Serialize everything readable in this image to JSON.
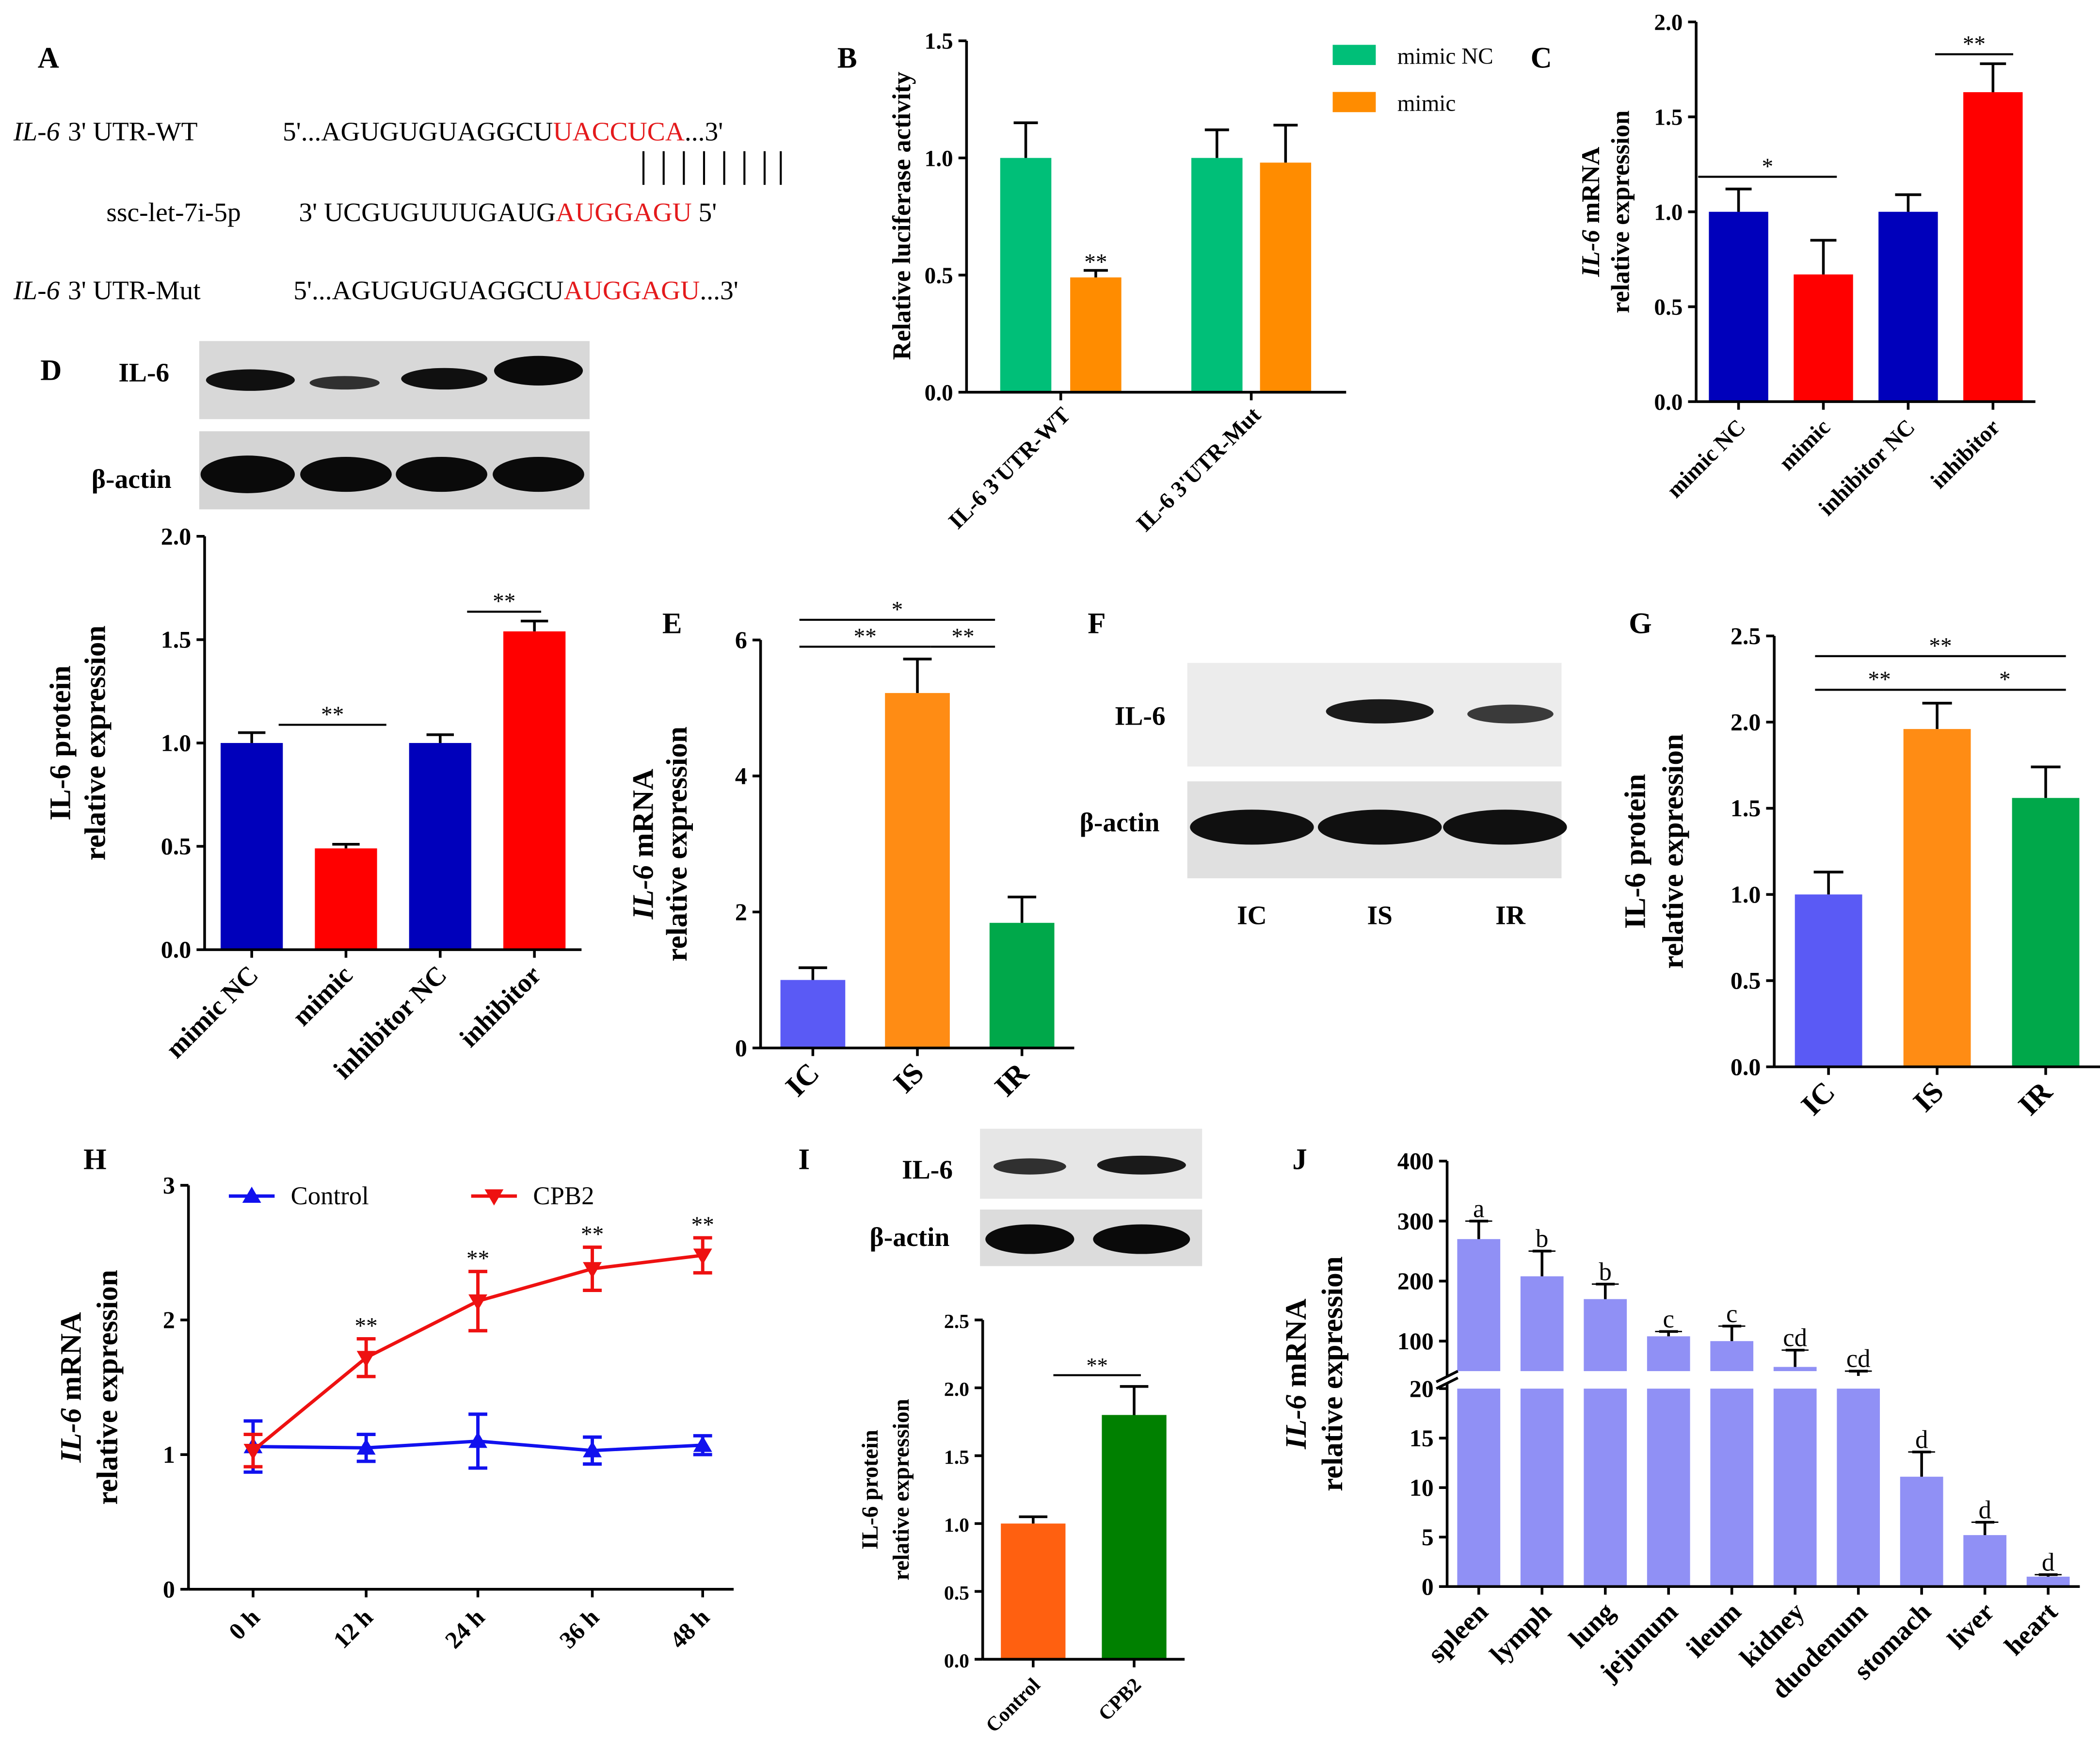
{
  "colors": {
    "blue": "#0000bb",
    "red": "#ff0000",
    "green_b": "#00bf78",
    "orange_b": "#ff8c00",
    "light_blue": "#5a5af5",
    "orange": "#ff8c14",
    "green": "#00a84a",
    "ctrl_orange": "#ff6010",
    "dark_green": "#008000",
    "lavender": "#9090f5",
    "seq_red": "#e41a1c",
    "line_blue": "#1111ee",
    "line_red": "#ee1111"
  },
  "panel_labels": {
    "A": "A",
    "B": "B",
    "C": "C",
    "D": "D",
    "E": "E",
    "F": "F",
    "G": "G",
    "H": "H",
    "I": "I",
    "J": "J"
  },
  "panel_a": {
    "wt": {
      "gene": "IL-6",
      "region": "3' UTR-WT",
      "prefix": "5'...AGUGUGUAGGCU",
      "highlight": "UACCUCA",
      "suffix": "...3'"
    },
    "mirna": {
      "name": "ssc-let-7i-5p",
      "prefix": "3' UCGUGUUUGAUG",
      "highlight": "AUGGAGU",
      "suffix": " 5'"
    },
    "mut": {
      "gene": "IL-6",
      "region": "3' UTR-Mut",
      "prefix": "5'...AGUGUGUAGGCU",
      "highlight": "AUGGAGU",
      "suffix": "...3'"
    }
  },
  "blots": {
    "d": {
      "top_label": "IL-6",
      "bottom_label": "β-actin"
    },
    "f": {
      "top_label": "IL-6",
      "bottom_label": "β-actin",
      "lanes": [
        "IC",
        "IS",
        "IR"
      ]
    },
    "i": {
      "top_label": "IL-6",
      "bottom_label": "β-actin"
    }
  },
  "chart_data": [
    {
      "panel": "B",
      "type": "bar",
      "categories": [
        "IL-6 3'UTR-WT",
        "IL-6 3'UTR-Mut"
      ],
      "series": [
        {
          "name": "mimic NC",
          "values": [
            1.0,
            1.0
          ],
          "errors": [
            0.15,
            0.12
          ],
          "color": "#00bf78"
        },
        {
          "name": "mimic",
          "values": [
            0.49,
            0.98
          ],
          "errors": [
            0.03,
            0.16
          ],
          "color": "#ff8c00"
        }
      ],
      "ylabel": "Relative luciferase activity",
      "ylim": [
        0,
        1.5
      ],
      "yticks": [
        "0.0",
        "0.5",
        "1.0",
        "1.5"
      ],
      "annotations": [
        "**"
      ],
      "legend": "top-right"
    },
    {
      "panel": "C",
      "type": "bar",
      "categories": [
        "mimic NC",
        "mimic",
        "inhibitor NC",
        "inhibitor"
      ],
      "values": [
        1.0,
        0.67,
        1.0,
        1.63
      ],
      "errors": [
        0.12,
        0.18,
        0.09,
        0.15
      ],
      "colors": [
        "#0000bb",
        "#ff0000",
        "#0000bb",
        "#ff0000"
      ],
      "ylabel_italic": "IL-6",
      "ylabel_rest": " mRNA",
      "ylabel_line2": "relative expression",
      "ylim": [
        0,
        2.0
      ],
      "yticks": [
        "0.0",
        "0.5",
        "1.0",
        "1.5",
        "2.0"
      ],
      "annotations": [
        "*",
        "**"
      ]
    },
    {
      "panel": "D",
      "type": "bar",
      "categories": [
        "mimic NC",
        "mimic",
        "inhibitor NC",
        "inhibitor"
      ],
      "values": [
        1.0,
        0.49,
        1.0,
        1.54
      ],
      "errors": [
        0.05,
        0.02,
        0.04,
        0.05
      ],
      "colors": [
        "#0000bb",
        "#ff0000",
        "#0000bb",
        "#ff0000"
      ],
      "ylabel": "IL-6 protein",
      "ylabel_line2": "relative expression",
      "ylim": [
        0,
        2.0
      ],
      "yticks": [
        "0.0",
        "0.5",
        "1.0",
        "1.5",
        "2.0"
      ],
      "annotations": [
        "**",
        "**"
      ]
    },
    {
      "panel": "E",
      "type": "bar",
      "categories": [
        "IC",
        "IS",
        "IR"
      ],
      "values": [
        1.0,
        5.22,
        1.84
      ],
      "errors": [
        0.18,
        0.5,
        0.38
      ],
      "colors": [
        "#5a5af5",
        "#ff8c14",
        "#00a84a"
      ],
      "ylabel_italic": "IL-6",
      "ylabel_rest": " mRNA",
      "ylabel_line2": "relative expression",
      "ylim": [
        0,
        6
      ],
      "yticks": [
        "0",
        "2",
        "4",
        "6"
      ],
      "annotations": [
        "*",
        "**",
        "**"
      ]
    },
    {
      "panel": "G",
      "type": "bar",
      "categories": [
        "IC",
        "IS",
        "IR"
      ],
      "values": [
        1.0,
        1.96,
        1.56
      ],
      "errors": [
        0.13,
        0.15,
        0.18
      ],
      "colors": [
        "#5a5af5",
        "#ff8c14",
        "#00a84a"
      ],
      "ylabel": "IL-6 protein",
      "ylabel_line2": "relative expression",
      "ylim": [
        0,
        2.5
      ],
      "yticks": [
        "0.0",
        "0.5",
        "1.0",
        "1.5",
        "2.0",
        "2.5"
      ],
      "annotations": [
        "**",
        "**",
        "*"
      ]
    },
    {
      "panel": "H",
      "type": "line",
      "x": [
        "0 h",
        "12 h",
        "24 h",
        "36 h",
        "48 h"
      ],
      "series": [
        {
          "name": "Control",
          "values": [
            1.06,
            1.05,
            1.1,
            1.03,
            1.07
          ],
          "errors": [
            0.19,
            0.1,
            0.2,
            0.1,
            0.07
          ],
          "color": "#1111ee",
          "marker": "triangle-up"
        },
        {
          "name": "CPB2",
          "values": [
            1.03,
            1.72,
            2.14,
            2.38,
            2.48
          ],
          "errors": [
            0.12,
            0.14,
            0.22,
            0.16,
            0.13
          ],
          "color": "#ee1111",
          "marker": "triangle-down"
        }
      ],
      "ylabel_italic": "IL-6",
      "ylabel_rest": " mRNA",
      "ylabel_line2": "relative expression",
      "ylim": [
        0,
        3
      ],
      "yticks": [
        "0",
        "1",
        "2",
        "3"
      ],
      "annotations": [
        "**",
        "**",
        "**",
        "**"
      ],
      "legend": "top"
    },
    {
      "panel": "I",
      "type": "bar",
      "categories": [
        "Control",
        "CPB2"
      ],
      "values": [
        1.0,
        1.8
      ],
      "errors": [
        0.05,
        0.21
      ],
      "colors": [
        "#ff6010",
        "#008000"
      ],
      "ylabel": "IL-6 protein",
      "ylabel_line2": "relative expression",
      "ylim": [
        0,
        2.5
      ],
      "yticks": [
        "0.0",
        "0.5",
        "1.0",
        "1.5",
        "2.0",
        "2.5"
      ],
      "annotations": [
        "**"
      ]
    },
    {
      "panel": "J",
      "type": "bar",
      "categories": [
        "spleen",
        "lymph",
        "lung",
        "jejunum",
        "ileum",
        "kidney",
        "duodenum",
        "stomach",
        "liver",
        "heart"
      ],
      "values": [
        270,
        208,
        170,
        108,
        100,
        57,
        42,
        11.1,
        5.2,
        1.0
      ],
      "errors": [
        30,
        42,
        25,
        8,
        25,
        28,
        8,
        2.5,
        1.3,
        0.2
      ],
      "letters": [
        "a",
        "b",
        "b",
        "c",
        "c",
        "cd",
        "cd",
        "d",
        "d",
        "d"
      ],
      "color": "#9090f5",
      "ylabel_italic": "IL-6",
      "ylabel_rest": " mRNA",
      "ylabel_line2": "relative expression",
      "axis_break": true,
      "ylim_lower": [
        0,
        20
      ],
      "ylim_upper": [
        50,
        400
      ],
      "yticks_lower": [
        "0",
        "5",
        "10",
        "15",
        "20"
      ],
      "yticks_upper": [
        "100",
        "200",
        "300",
        "400"
      ]
    }
  ]
}
